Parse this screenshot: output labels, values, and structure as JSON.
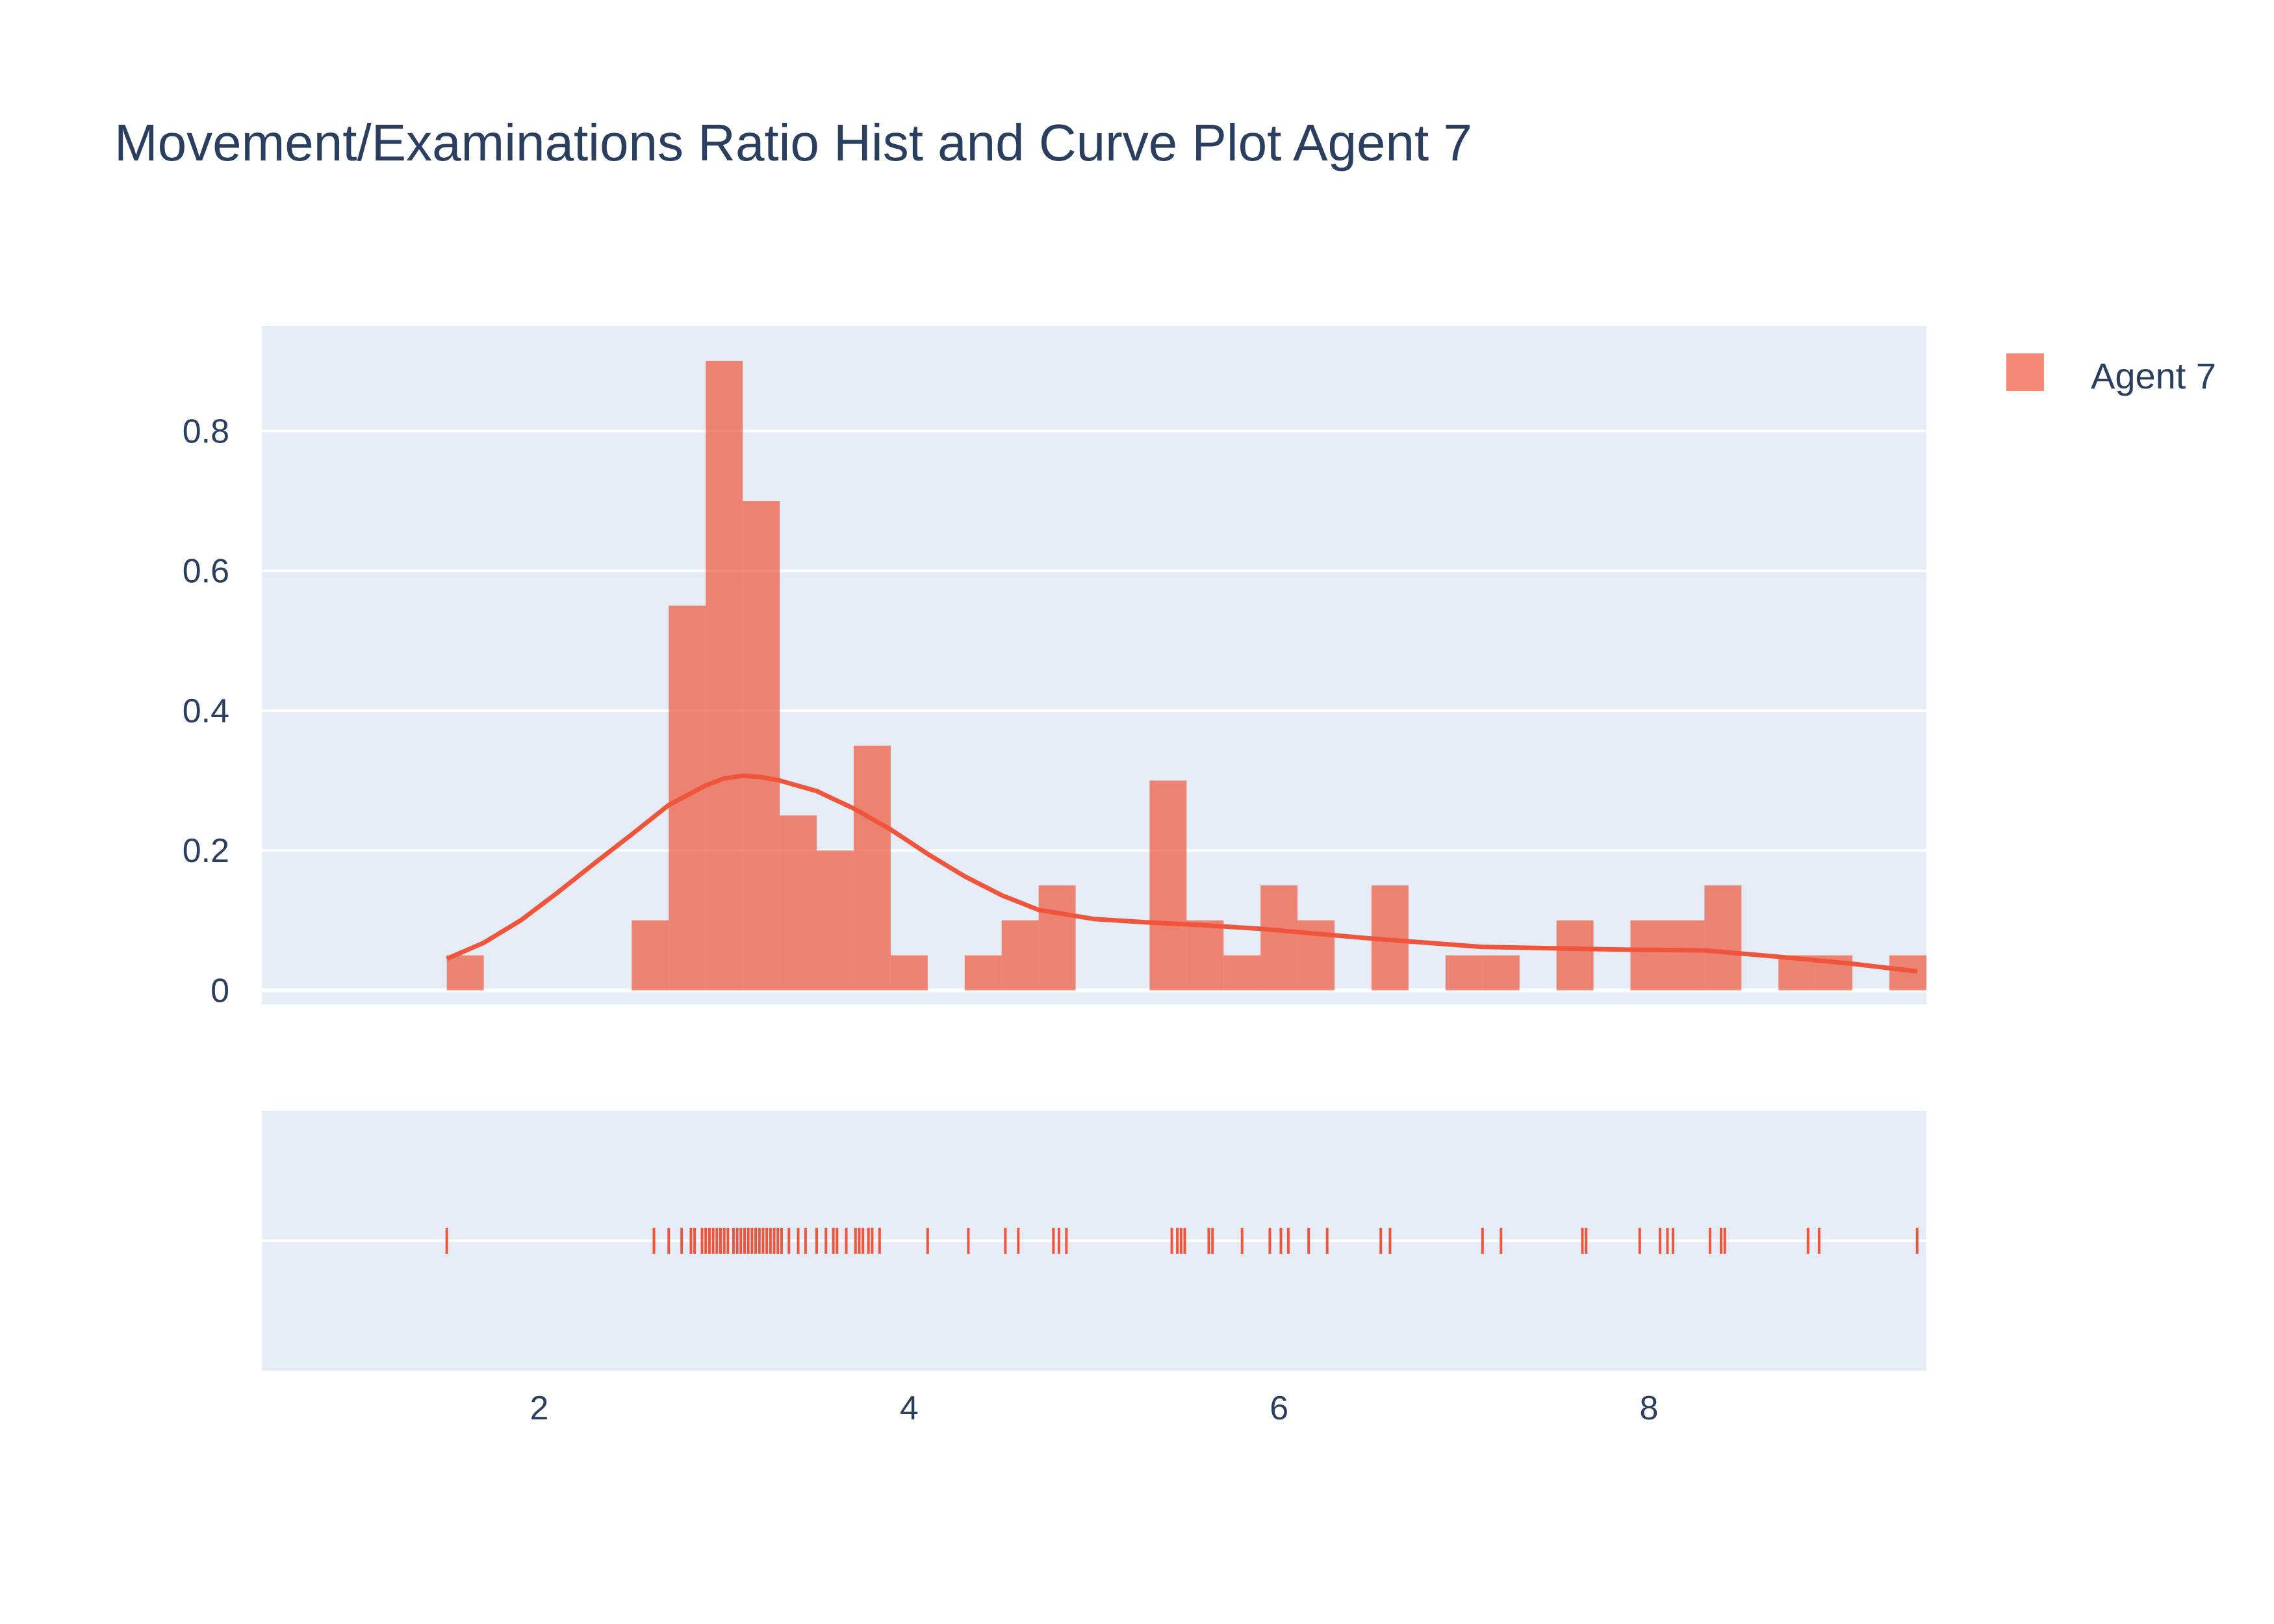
{
  "colors": {
    "plot_bg": "#e5ecf6",
    "grid": "#ffffff",
    "bar": "#ef553b",
    "curve": "#ef553b",
    "text": "#2a3f5f"
  },
  "chart_data": {
    "type": "histogram",
    "title": "Movement/Examinations Ratio Hist and Curve Plot Agent 7",
    "legend": [
      {
        "name": "Agent 7",
        "icon": "square-swatch"
      }
    ],
    "bin_size": 0.2,
    "bins_start": 1.5,
    "bars_x0": [
      1.5,
      2.5,
      2.7,
      2.9,
      3.1,
      3.3,
      3.5,
      3.7,
      3.9,
      4.3,
      4.5,
      4.7,
      5.3,
      5.5,
      5.7,
      5.9,
      6.1,
      6.5,
      6.9,
      7.1,
      7.5,
      7.9,
      8.1,
      8.3,
      8.7,
      8.9,
      9.3
    ],
    "bars_y": [
      0.05,
      0.1,
      0.55,
      0.9,
      0.7,
      0.25,
      0.2,
      0.35,
      0.05,
      0.05,
      0.1,
      0.15,
      0.3,
      0.1,
      0.05,
      0.15,
      0.1,
      0.15,
      0.05,
      0.05,
      0.1,
      0.1,
      0.1,
      0.15,
      0.05,
      0.05,
      0.05
    ],
    "curve_x": [
      1.5,
      1.7,
      1.9,
      2.1,
      2.3,
      2.5,
      2.7,
      2.9,
      3.0,
      3.1,
      3.2,
      3.3,
      3.5,
      3.7,
      3.9,
      4.1,
      4.3,
      4.5,
      4.7,
      5.0,
      5.3,
      5.6,
      5.9,
      6.2,
      6.5,
      6.8,
      7.1,
      7.5,
      7.9,
      8.3,
      8.7,
      9.1,
      9.45
    ],
    "curve_y": [
      0.045,
      0.068,
      0.1,
      0.14,
      0.182,
      0.223,
      0.265,
      0.293,
      0.303,
      0.307,
      0.305,
      0.3,
      0.285,
      0.26,
      0.23,
      0.195,
      0.163,
      0.136,
      0.115,
      0.102,
      0.097,
      0.093,
      0.088,
      0.081,
      0.074,
      0.068,
      0.062,
      0.06,
      0.058,
      0.057,
      0.048,
      0.038,
      0.027
    ],
    "rug_x": [
      1.5,
      2.62,
      2.7,
      2.77,
      2.82,
      2.84,
      2.88,
      2.9,
      2.92,
      2.94,
      2.96,
      2.98,
      3.0,
      3.02,
      3.05,
      3.07,
      3.09,
      3.11,
      3.13,
      3.15,
      3.17,
      3.19,
      3.21,
      3.23,
      3.25,
      3.27,
      3.29,
      3.31,
      3.35,
      3.4,
      3.44,
      3.5,
      3.55,
      3.59,
      3.61,
      3.66,
      3.71,
      3.73,
      3.75,
      3.78,
      3.8,
      3.84,
      4.1,
      4.32,
      4.52,
      4.59,
      4.78,
      4.81,
      4.85,
      5.42,
      5.45,
      5.47,
      5.49,
      5.62,
      5.64,
      5.8,
      5.95,
      6.01,
      6.05,
      6.16,
      6.26,
      6.55,
      6.6,
      7.1,
      7.2,
      7.64,
      7.66,
      7.95,
      8.06,
      8.1,
      8.13,
      8.33,
      8.39,
      8.41,
      8.86,
      8.92,
      9.45
    ],
    "xaxis": {
      "range": [
        0.5,
        9.5
      ],
      "ticks": [
        2,
        4,
        6,
        8
      ],
      "tick_labels": [
        "2",
        "4",
        "6",
        "8"
      ]
    },
    "yaxis": {
      "range": [
        -0.02,
        0.95
      ],
      "ticks": [
        0,
        0.2,
        0.4,
        0.6,
        0.8
      ],
      "tick_labels": [
        "0",
        "0.2",
        "0.4",
        "0.6",
        "0.8"
      ]
    }
  }
}
